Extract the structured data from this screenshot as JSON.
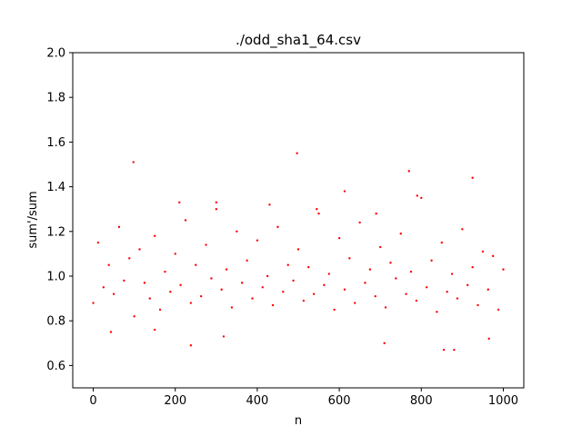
{
  "chart_data": {
    "type": "scatter",
    "title": "./odd_sha1_64.csv",
    "xlabel": "n",
    "ylabel": "sum'/sum",
    "xlim": [
      -50,
      1050
    ],
    "ylim": [
      0.5,
      2.0
    ],
    "xticks": [
      0,
      200,
      400,
      600,
      800,
      1000
    ],
    "xtick_labels": [
      "0",
      "200",
      "400",
      "600",
      "800",
      "1000"
    ],
    "yticks": [
      0.6,
      0.8,
      1.0,
      1.2,
      1.4,
      1.6,
      1.8,
      2.0
    ],
    "ytick_labels": [
      "0.6",
      "0.8",
      "1.0",
      "1.2",
      "1.4",
      "1.6",
      "1.8",
      "2.0"
    ],
    "grid": false,
    "marker_color": "#ff0000",
    "series": [
      {
        "x": [
          0,
          12,
          25,
          38,
          50,
          63,
          75,
          88,
          100,
          113,
          125,
          138,
          150,
          163,
          175,
          188,
          200,
          213,
          225,
          238,
          250,
          263,
          275,
          288,
          300,
          313,
          325,
          338,
          350,
          363,
          375,
          388,
          400,
          413,
          425,
          438,
          450,
          463,
          475,
          488,
          500,
          513,
          525,
          538,
          550,
          563,
          575,
          588,
          600,
          613,
          625,
          638,
          650,
          663,
          675,
          688,
          700,
          713,
          725,
          738,
          750,
          763,
          775,
          788,
          800,
          813,
          825,
          838,
          850,
          863,
          875,
          888,
          900,
          913,
          925,
          938,
          950,
          963,
          975,
          988,
          1000,
          98,
          497,
          770,
          925,
          238,
          855,
          710,
          880,
          43,
          318,
          613,
          210,
          790,
          150,
          430,
          545,
          690,
          965,
          300
        ],
        "y": [
          0.88,
          1.15,
          0.95,
          1.05,
          0.92,
          1.22,
          0.98,
          1.08,
          0.82,
          1.12,
          0.97,
          0.9,
          1.18,
          0.85,
          1.02,
          0.93,
          1.1,
          0.96,
          1.25,
          0.88,
          1.05,
          0.91,
          1.14,
          0.99,
          1.3,
          0.94,
          1.03,
          0.86,
          1.2,
          0.97,
          1.07,
          0.9,
          1.16,
          0.95,
          1.0,
          0.87,
          1.22,
          0.93,
          1.05,
          0.98,
          1.12,
          0.89,
          1.04,
          0.92,
          1.28,
          0.96,
          1.01,
          0.85,
          1.17,
          0.94,
          1.08,
          0.88,
          1.24,
          0.97,
          1.03,
          0.91,
          1.13,
          0.86,
          1.06,
          0.99,
          1.19,
          0.92,
          1.02,
          0.89,
          1.35,
          0.95,
          1.07,
          0.84,
          1.15,
          0.93,
          1.01,
          0.9,
          1.21,
          0.96,
          1.04,
          0.87,
          1.11,
          0.94,
          1.09,
          0.85,
          1.03,
          1.51,
          1.55,
          1.47,
          1.44,
          0.69,
          0.67,
          0.7,
          0.67,
          0.75,
          0.73,
          1.38,
          1.33,
          1.36,
          0.76,
          1.32,
          1.3,
          1.28,
          0.72,
          1.33
        ]
      }
    ]
  }
}
